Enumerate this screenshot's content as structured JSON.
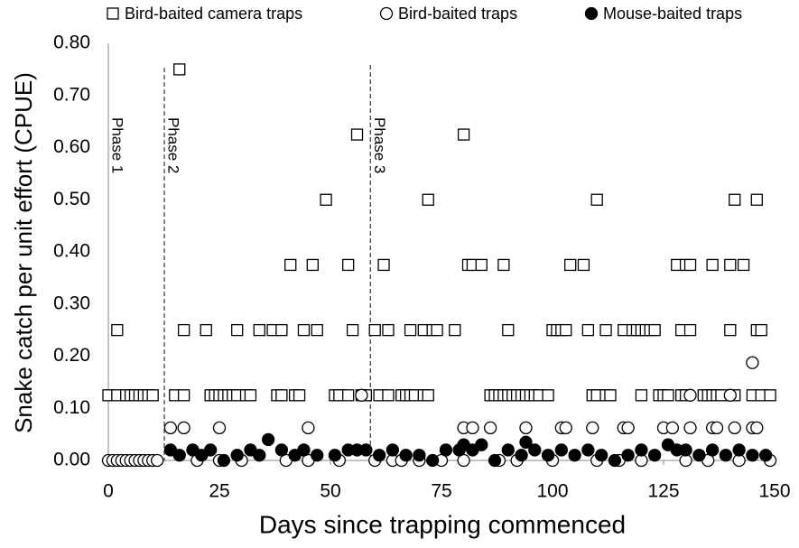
{
  "chart_data": {
    "type": "scatter",
    "xlabel": "Days since trapping commenced",
    "ylabel": "Snake catch per unit effort (CPUE)",
    "xlim": [
      0,
      150
    ],
    "ylim": [
      0,
      0.8
    ],
    "xticks": [
      0,
      25,
      50,
      75,
      100,
      125,
      150
    ],
    "yticks": [
      {
        "value": 0,
        "label": "0.00"
      },
      {
        "value": 0.1,
        "label": "0.10"
      },
      {
        "value": 0.2,
        "label": "0.20"
      },
      {
        "value": 0.3,
        "label": "0.30"
      },
      {
        "value": 0.4,
        "label": "0.40"
      },
      {
        "value": 0.5,
        "label": "0.50"
      },
      {
        "value": 0.6,
        "label": "0.60"
      },
      {
        "value": 0.7,
        "label": "0.70"
      },
      {
        "value": 0.8,
        "label": "0.80"
      }
    ],
    "legend": "top",
    "annotations": [
      {
        "text": "Phase 1",
        "x": 0,
        "style": "solid"
      },
      {
        "text": "Phase 2",
        "x": 12.6,
        "style": "dashed"
      },
      {
        "text": "Phase 3",
        "x": 59,
        "style": "dashed"
      }
    ],
    "series": [
      {
        "name": "Bird-baited camera traps",
        "marker": "square",
        "color": "#000000",
        "x": [
          16,
          56,
          80,
          49,
          72,
          110,
          141,
          146,
          41,
          46,
          54,
          62,
          81,
          82,
          84,
          89,
          104,
          107,
          128,
          130,
          131,
          136,
          140,
          143,
          2,
          17,
          22,
          29,
          34,
          37,
          39,
          44,
          47,
          55,
          60,
          63,
          68,
          71,
          73,
          74,
          78,
          90,
          100,
          101,
          102,
          103,
          108,
          112,
          116,
          118,
          119,
          120,
          121,
          122,
          123,
          129,
          131,
          140,
          146,
          147,
          0,
          2,
          4,
          5,
          6,
          7,
          8,
          9,
          10,
          15,
          17,
          23,
          24,
          25,
          26,
          27,
          28,
          29,
          31,
          32,
          38,
          39,
          42,
          43,
          51,
          52,
          54,
          57,
          58,
          61,
          63,
          66,
          67,
          68,
          69,
          71,
          72,
          86,
          87,
          88,
          89,
          90,
          91,
          92,
          93,
          94,
          95,
          96,
          97,
          99,
          109,
          110,
          112,
          113,
          120,
          124,
          125,
          126,
          129,
          130,
          134,
          135,
          136,
          137,
          138,
          141,
          145,
          147,
          149
        ],
        "y": [
          0.75,
          0.625,
          0.625,
          0.5,
          0.5,
          0.5,
          0.5,
          0.5,
          0.375,
          0.375,
          0.375,
          0.375,
          0.375,
          0.375,
          0.375,
          0.375,
          0.375,
          0.375,
          0.375,
          0.375,
          0.375,
          0.375,
          0.375,
          0.375,
          0.25,
          0.25,
          0.25,
          0.25,
          0.25,
          0.25,
          0.25,
          0.25,
          0.25,
          0.25,
          0.25,
          0.25,
          0.25,
          0.25,
          0.25,
          0.25,
          0.25,
          0.25,
          0.25,
          0.25,
          0.25,
          0.25,
          0.25,
          0.25,
          0.25,
          0.25,
          0.25,
          0.25,
          0.25,
          0.25,
          0.25,
          0.25,
          0.25,
          0.25,
          0.25,
          0.25,
          0.125,
          0.125,
          0.125,
          0.125,
          0.125,
          0.125,
          0.125,
          0.125,
          0.125,
          0.125,
          0.125,
          0.125,
          0.125,
          0.125,
          0.125,
          0.125,
          0.125,
          0.125,
          0.125,
          0.125,
          0.125,
          0.125,
          0.125,
          0.125,
          0.125,
          0.125,
          0.125,
          0.125,
          0.125,
          0.125,
          0.125,
          0.125,
          0.125,
          0.125,
          0.125,
          0.125,
          0.125,
          0.125,
          0.125,
          0.125,
          0.125,
          0.125,
          0.125,
          0.125,
          0.125,
          0.125,
          0.125,
          0.125,
          0.125,
          0.125,
          0.125,
          0.125,
          0.125,
          0.125,
          0.125,
          0.125,
          0.125,
          0.125,
          0.125,
          0.125,
          0.125,
          0.125,
          0.125,
          0.125,
          0.125,
          0.125,
          0.125,
          0.125,
          0.125
        ]
      },
      {
        "name": "Bird-baited traps",
        "marker": "open-circle",
        "color": "#000000",
        "x": [
          0,
          1,
          2,
          3,
          4,
          5,
          6,
          7,
          8,
          9,
          10,
          11,
          20,
          25,
          30,
          40,
          45,
          52,
          60,
          64,
          66,
          70,
          75,
          80,
          88,
          92,
          100,
          110,
          115,
          120,
          130,
          135,
          142,
          149,
          14,
          17,
          25,
          45,
          80,
          82,
          86,
          94,
          102,
          103,
          109,
          116,
          117,
          125,
          127,
          131,
          136,
          137,
          141,
          145,
          146,
          57,
          131,
          140,
          145
        ],
        "y": [
          0,
          0,
          0,
          0,
          0,
          0,
          0,
          0,
          0,
          0,
          0,
          0,
          0,
          0,
          0,
          0,
          0,
          0,
          0,
          0,
          0,
          0,
          0,
          0,
          0,
          0,
          0,
          0,
          0,
          0,
          0,
          0,
          0,
          0,
          0.0625,
          0.0625,
          0.0625,
          0.0625,
          0.0625,
          0.0625,
          0.0625,
          0.0625,
          0.0625,
          0.0625,
          0.0625,
          0.0625,
          0.0625,
          0.0625,
          0.0625,
          0.0625,
          0.0625,
          0.0625,
          0.0625,
          0.0625,
          0.0625,
          0.125,
          0.125,
          0.125,
          0.1875
        ]
      },
      {
        "name": "Mouse-baited traps",
        "marker": "filled-circle",
        "color": "#000000",
        "x": [
          14,
          16,
          19,
          21,
          23,
          26,
          29,
          32,
          34,
          36,
          39,
          42,
          44,
          47,
          51,
          54,
          56,
          58,
          61,
          64,
          67,
          70,
          73,
          76,
          79,
          80,
          82,
          84,
          87,
          90,
          93,
          94,
          96,
          99,
          102,
          105,
          108,
          111,
          114,
          117,
          120,
          123,
          126,
          128,
          130,
          133,
          136,
          139,
          142,
          145,
          148
        ],
        "y": [
          0.02,
          0.01,
          0.02,
          0.01,
          0.02,
          0.0,
          0.01,
          0.02,
          0.01,
          0.04,
          0.02,
          0.01,
          0.02,
          0.01,
          0.01,
          0.02,
          0.02,
          0.02,
          0.01,
          0.02,
          0.01,
          0.01,
          0.0,
          0.02,
          0.02,
          0.03,
          0.02,
          0.03,
          0.0,
          0.02,
          0.01,
          0.035,
          0.02,
          0.01,
          0.02,
          0.01,
          0.02,
          0.01,
          0.0,
          0.01,
          0.02,
          0.01,
          0.03,
          0.02,
          0.02,
          0.01,
          0.02,
          0.01,
          0.02,
          0.01,
          0.01
        ]
      }
    ]
  }
}
